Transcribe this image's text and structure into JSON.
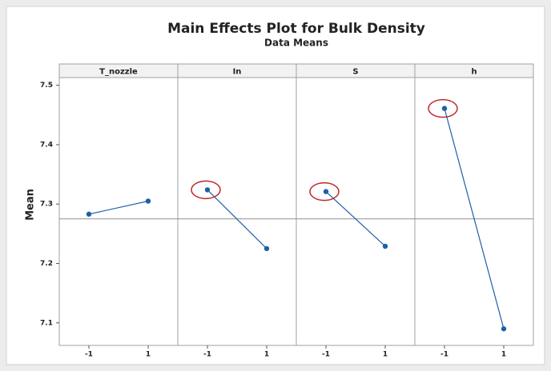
{
  "chart_data": {
    "type": "line",
    "title": "Main Effects Plot for Bulk Density",
    "subtitle": "Data Means",
    "y_label": "Mean",
    "ylim": [
      7.062,
      7.513
    ],
    "yticks": [
      7.1,
      7.2,
      7.3,
      7.4,
      7.5
    ],
    "reference_line": 7.275,
    "color": "#1f5fa8",
    "highlight_color": "#c0272d",
    "panels": [
      {
        "name": "T_nozzle",
        "categories": [
          "-1",
          "1"
        ],
        "values": [
          7.283,
          7.305
        ],
        "circled": false
      },
      {
        "name": "In",
        "categories": [
          "-1",
          "1"
        ],
        "values": [
          7.324,
          7.225
        ],
        "circled": true
      },
      {
        "name": "S",
        "categories": [
          "-1",
          "1"
        ],
        "values": [
          7.321,
          7.229
        ],
        "circled": true
      },
      {
        "name": "h",
        "categories": [
          "-1",
          "1"
        ],
        "values": [
          7.461,
          7.09
        ],
        "circled": true
      }
    ]
  }
}
